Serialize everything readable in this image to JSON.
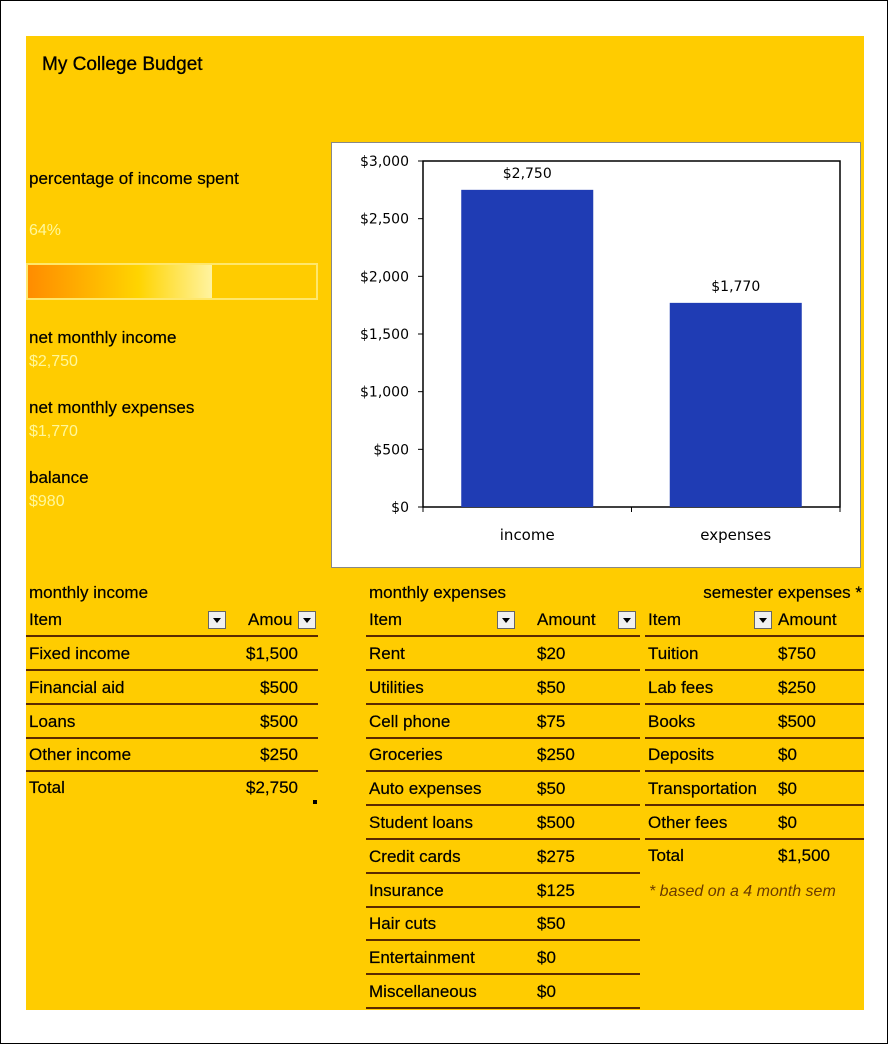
{
  "title": "My College Budget",
  "summary": {
    "pct_label": "percentage of income spent",
    "pct_value": "64%",
    "pct_fraction": 0.64,
    "income_label": "net monthly income",
    "income_value": "$2,750",
    "expenses_label": "net monthly expenses",
    "expenses_value": "$1,770",
    "balance_label": "balance",
    "balance_value": "$980"
  },
  "chart_data": {
    "type": "bar",
    "categories": [
      "income",
      "expenses"
    ],
    "values": [
      2750,
      1770
    ],
    "data_labels": [
      "$2,750",
      "$1,770"
    ],
    "ylim": [
      0,
      3000
    ],
    "yticks": [
      "$0",
      "$500",
      "$1,000",
      "$1,500",
      "$2,000",
      "$2,500",
      "$3,000"
    ],
    "ytick_values": [
      0,
      500,
      1000,
      1500,
      2000,
      2500,
      3000
    ],
    "bar_color": "#1F3CB4",
    "grid": false,
    "legend": "none"
  },
  "income": {
    "heading": "monthly income",
    "col_item": "Item",
    "col_amount": "Amou",
    "rows": [
      {
        "item": "Fixed income",
        "amount": "$1,500"
      },
      {
        "item": "Financial aid",
        "amount": "$500"
      },
      {
        "item": "Loans",
        "amount": "$500"
      },
      {
        "item": "Other income",
        "amount": "$250"
      }
    ],
    "total_label": "Total",
    "total_value": "$2,750"
  },
  "expenses": {
    "heading": "monthly expenses",
    "col_item": "Item",
    "col_amount": "Amount",
    "rows": [
      {
        "item": "Rent",
        "amount": "$20"
      },
      {
        "item": "Utilities",
        "amount": "$50"
      },
      {
        "item": "Cell phone",
        "amount": "$75"
      },
      {
        "item": "Groceries",
        "amount": "$250"
      },
      {
        "item": "Auto expenses",
        "amount": "$50"
      },
      {
        "item": "Student loans",
        "amount": "$500"
      },
      {
        "item": "Credit cards",
        "amount": "$275"
      },
      {
        "item": "Insurance",
        "amount": "$125"
      },
      {
        "item": "Hair cuts",
        "amount": "$50"
      },
      {
        "item": "Entertainment",
        "amount": "$0"
      },
      {
        "item": "Miscellaneous",
        "amount": "$0"
      }
    ]
  },
  "semester": {
    "heading": "semester expenses *",
    "col_item": "Item",
    "col_amount": "Amount",
    "rows": [
      {
        "item": "Tuition",
        "amount": "$750"
      },
      {
        "item": "Lab fees",
        "amount": "$250"
      },
      {
        "item": "Books",
        "amount": "$500"
      },
      {
        "item": "Deposits",
        "amount": "$0"
      },
      {
        "item": "Transportation",
        "amount": "$0"
      },
      {
        "item": "Other fees",
        "amount": "$0"
      }
    ],
    "total_label": "Total",
    "total_value": "$1,500",
    "note": "* based on a 4 month sem"
  }
}
